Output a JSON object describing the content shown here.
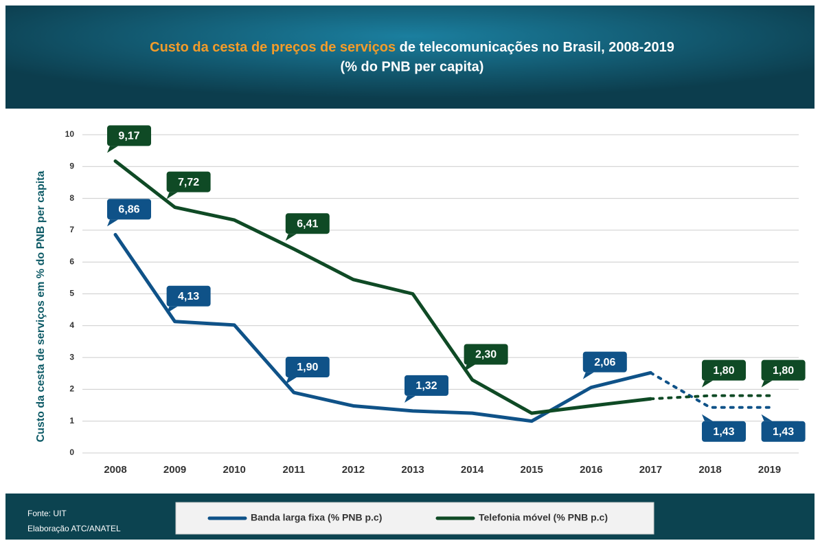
{
  "chart_data": {
    "type": "line",
    "title_highlight": "Custo da cesta de preços de serviços",
    "title": "de telecomunicações no Brasil, 2008-2019",
    "subtitle": "(% do PNB per capita)",
    "y_label": "Custo da cesta de serviços em % do PNB per capita",
    "categories": [
      "2008",
      "2009",
      "2010",
      "2011",
      "2012",
      "2013",
      "2014",
      "2015",
      "2016",
      "2017",
      "2018",
      "2019"
    ],
    "dashed_from": 9,
    "series": [
      {
        "name": "Banda larga fixa (% PNB p.c)",
        "color": "#0f5288",
        "values": [
          6.86,
          4.13,
          4.02,
          1.9,
          1.48,
          1.32,
          1.25,
          1.0,
          2.06,
          2.52,
          1.43,
          1.43
        ],
        "value_labels": [
          "6,86",
          "4,13",
          null,
          "1,90",
          null,
          "1,32",
          null,
          null,
          "2,06",
          null,
          "1,43",
          "1,43"
        ]
      },
      {
        "name": "Telefonia móvel (% PNB p.c)",
        "color": "#0f4a25",
        "values": [
          9.17,
          7.72,
          7.32,
          6.41,
          5.45,
          5.0,
          2.3,
          1.25,
          1.48,
          1.7,
          1.8,
          1.8
        ],
        "value_labels": [
          "9,17",
          "7,72",
          null,
          "6,41",
          null,
          null,
          "2,30",
          null,
          null,
          null,
          "1,80",
          "1,80"
        ]
      }
    ],
    "ylim": [
      0,
      10
    ],
    "yticks": [
      0,
      1,
      2,
      3,
      4,
      5,
      6,
      7,
      8,
      9,
      10
    ],
    "grid": true,
    "source": "Fonte: UIT",
    "credit": "Elaboração ATC/ANATEL"
  }
}
